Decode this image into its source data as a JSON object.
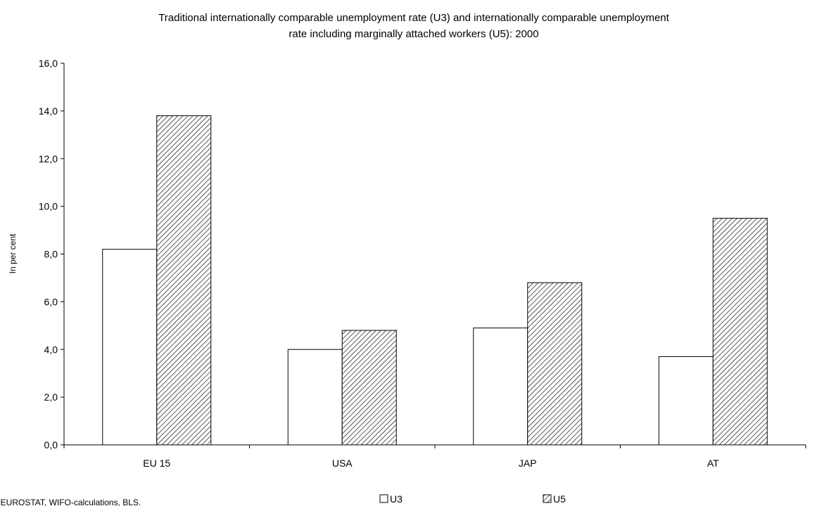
{
  "chart_data": {
    "type": "bar",
    "title_lines": [
      "Traditional internationally comparable unemployment rate  (U3) and internationally comparable unemployment",
      "rate including marginally attached workers (U5): 2000"
    ],
    "xlabel": "",
    "ylabel": "In per cent",
    "categories": [
      "EU 15",
      "USA",
      "JAP",
      "AT"
    ],
    "series": [
      {
        "name": "U3",
        "values": [
          8.2,
          4.0,
          4.9,
          3.7
        ],
        "fill": "white"
      },
      {
        "name": "U5",
        "values": [
          13.8,
          4.8,
          6.8,
          9.5
        ],
        "fill": "hatched"
      }
    ],
    "ylim": [
      0,
      16
    ],
    "y_ticks": [
      "0,0",
      "2,0",
      "4,0",
      "6,0",
      "8,0",
      "10,0",
      "12,0",
      "14,0",
      "16,0"
    ],
    "grid": false,
    "legend_position": "bottom",
    "source_note": ": EUROSTAT, WIFO-calculations, BLS."
  }
}
